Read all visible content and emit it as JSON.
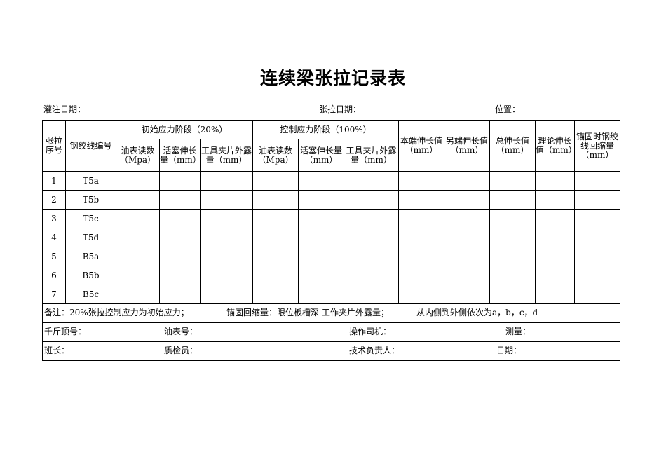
{
  "title": "连续梁张拉记录表",
  "info": {
    "pour_date": "灌注日期：",
    "tension_date": "张拉日期：",
    "position": "位置："
  },
  "headers": {
    "seq": "张拉序号",
    "strand_no": "钢绞线编号",
    "initial_stage": "初始应力阶段（20%）",
    "control_stage": "控制应力阶段（100%）",
    "gauge_reading": "油表读数（Mpa）",
    "piston_ext_initial": "活塞伸长量（mm）",
    "tool_clip_exposed": "工具夹片外露量（mm）",
    "piston_ext_control": "活塞伸长量（mm）",
    "this_end_ext": "本端伸长值（mm）",
    "other_end_ext": "另端伸长值（mm）",
    "total_ext": "总伸长值（mm）",
    "theoretical_ext": "理论伸长值（mm）",
    "anchor_retraction": "锚固时钢绞线回缩量（mm）"
  },
  "rows": [
    {
      "seq": "1",
      "strand": "T5a"
    },
    {
      "seq": "2",
      "strand": "T5b"
    },
    {
      "seq": "3",
      "strand": "T5c"
    },
    {
      "seq": "4",
      "strand": "T5d"
    },
    {
      "seq": "5",
      "strand": "B5a"
    },
    {
      "seq": "6",
      "strand": "B5b"
    },
    {
      "seq": "7",
      "strand": "B5c"
    }
  ],
  "notes": {
    "remark": "备注：20%张拉控制应力为初始应力；",
    "retraction": "锚固回缩量：限位板槽深-工作夹片外露量；",
    "order": "从内侧到外侧依次为a，b，c，d"
  },
  "footer": {
    "jack_no": "千斤顶号：",
    "gauge_no": "油表号：",
    "operator": "操作司机：",
    "measure": "测量：",
    "team_leader": "班长：",
    "inspector": "质检员：",
    "tech_lead": "技术负责人：",
    "date": "日期："
  }
}
